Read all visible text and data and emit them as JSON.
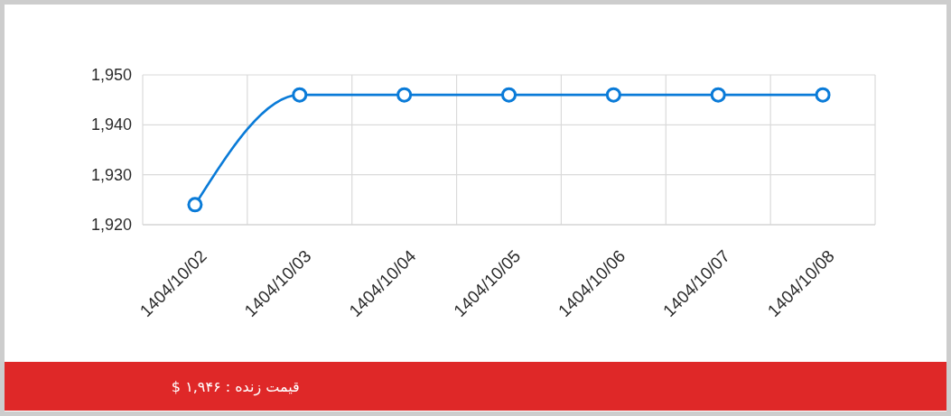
{
  "chart_data": {
    "type": "line",
    "categories": [
      "1404/10/02",
      "1404/10/03",
      "1404/10/04",
      "1404/10/05",
      "1404/10/06",
      "1404/10/07",
      "1404/10/08"
    ],
    "series": [
      {
        "color": "#0a7bd8",
        "values": [
          1924,
          1946,
          1946,
          1946,
          1946,
          1946,
          1946
        ]
      }
    ],
    "ylim": [
      1920,
      1950
    ],
    "yticks": [
      {
        "value": 1920,
        "label": "1,920"
      },
      {
        "value": 1930,
        "label": "1,930"
      },
      {
        "value": 1940,
        "label": "1,940"
      },
      {
        "value": 1950,
        "label": "1,950"
      }
    ],
    "grid": true,
    "marker": "circle",
    "line_style": "solid",
    "annotations": [
      "قیمت زنده : ۱,۹۴۶ $"
    ]
  }
}
